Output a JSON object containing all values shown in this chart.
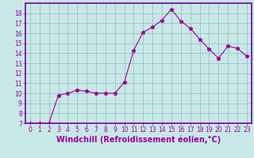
{
  "x": [
    0,
    1,
    2,
    3,
    4,
    5,
    6,
    7,
    8,
    9,
    10,
    11,
    12,
    13,
    14,
    15,
    16,
    17,
    18,
    19,
    20,
    21,
    22,
    23
  ],
  "y": [
    7.0,
    7.0,
    7.0,
    9.8,
    10.0,
    10.3,
    10.2,
    10.0,
    10.0,
    10.0,
    11.1,
    14.3,
    16.1,
    16.6,
    17.3,
    18.4,
    17.2,
    16.5,
    15.4,
    14.4,
    13.5,
    14.7,
    14.5,
    13.7
  ],
  "line_color": "#990099",
  "marker": "*",
  "marker_size": 3.5,
  "background_color": "#c8e8e8",
  "grid_color": "#a0c8c8",
  "xlabel": "Windchill (Refroidissement éolien,°C)",
  "xlabel_color": "#990099",
  "ylim": [
    7,
    19
  ],
  "xlim": [
    -0.5,
    23.5
  ],
  "yticks": [
    7,
    8,
    9,
    10,
    11,
    12,
    13,
    14,
    15,
    16,
    17,
    18
  ],
  "xticks": [
    0,
    1,
    2,
    3,
    4,
    5,
    6,
    7,
    8,
    9,
    10,
    11,
    12,
    13,
    14,
    15,
    16,
    17,
    18,
    19,
    20,
    21,
    22,
    23
  ],
  "tick_color": "#990099",
  "tick_fontsize": 5.5,
  "xlabel_fontsize": 7.0,
  "spine_color": "#990099",
  "border_color": "#7700aa"
}
